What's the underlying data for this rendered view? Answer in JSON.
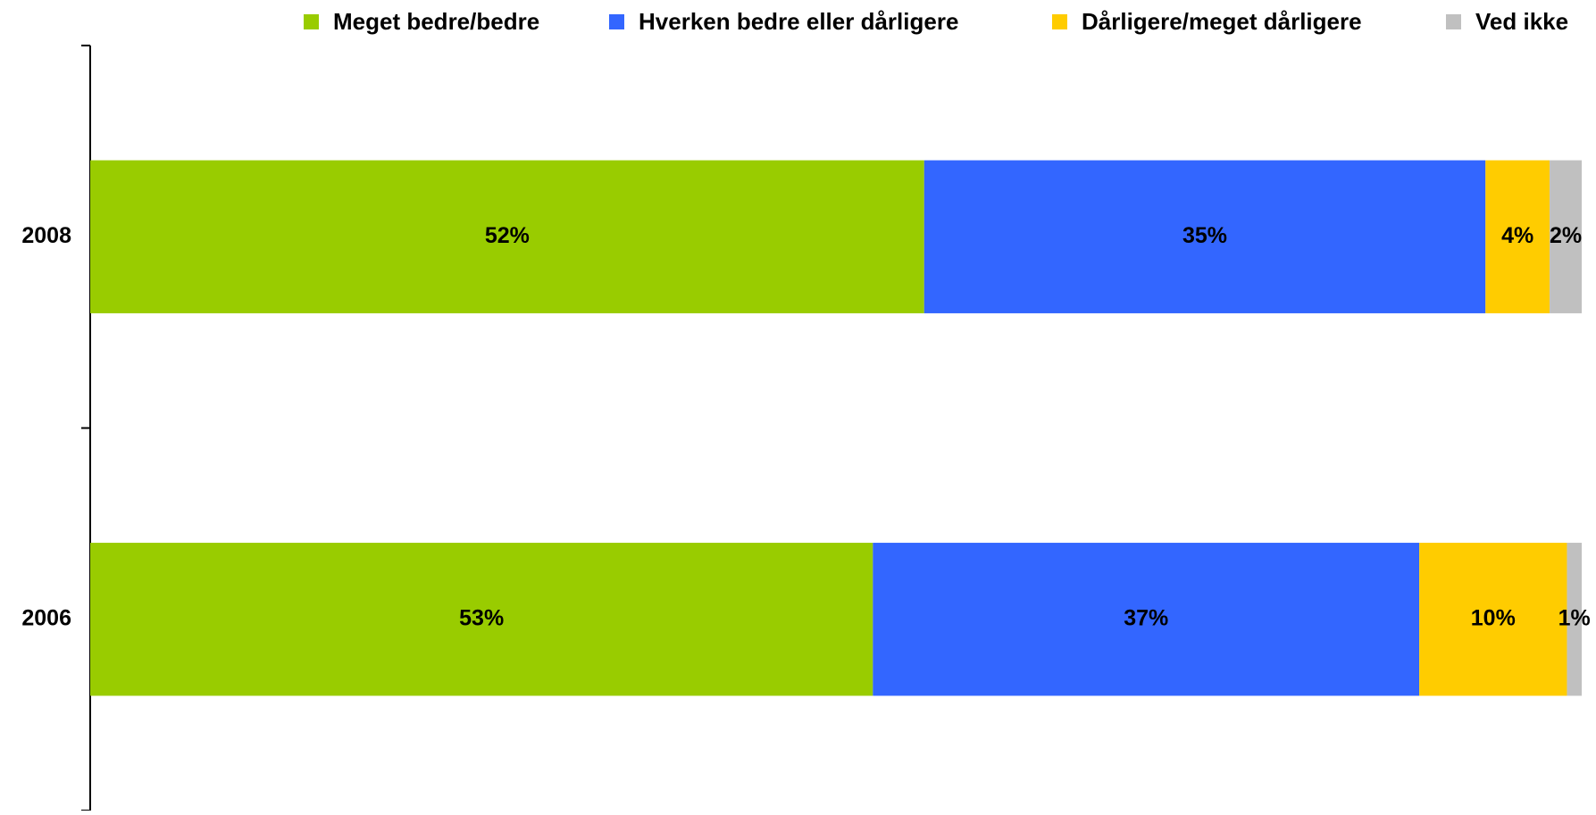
{
  "chart_data": {
    "type": "bar",
    "orientation": "horizontal",
    "stacking": "percent",
    "categories": [
      "2008",
      "2006"
    ],
    "series": [
      {
        "name": "Meget bedre/bedre",
        "color": "#99cc00",
        "values": [
          52,
          53
        ],
        "value_labels": [
          "52%",
          "53%"
        ]
      },
      {
        "name": "Hverken bedre eller dårligere",
        "color": "#3366ff",
        "values": [
          35,
          37
        ],
        "value_labels": [
          "35%",
          "37%"
        ]
      },
      {
        "name": "Dårligere/meget dårligere",
        "color": "#ffcc00",
        "values": [
          4,
          10
        ],
        "value_labels": [
          "4%",
          "10%"
        ]
      },
      {
        "name": "Ved ikke",
        "color": "#c0c0c0",
        "values": [
          2,
          1
        ],
        "value_labels": [
          "2%",
          "1%"
        ]
      }
    ],
    "legend": "top"
  }
}
